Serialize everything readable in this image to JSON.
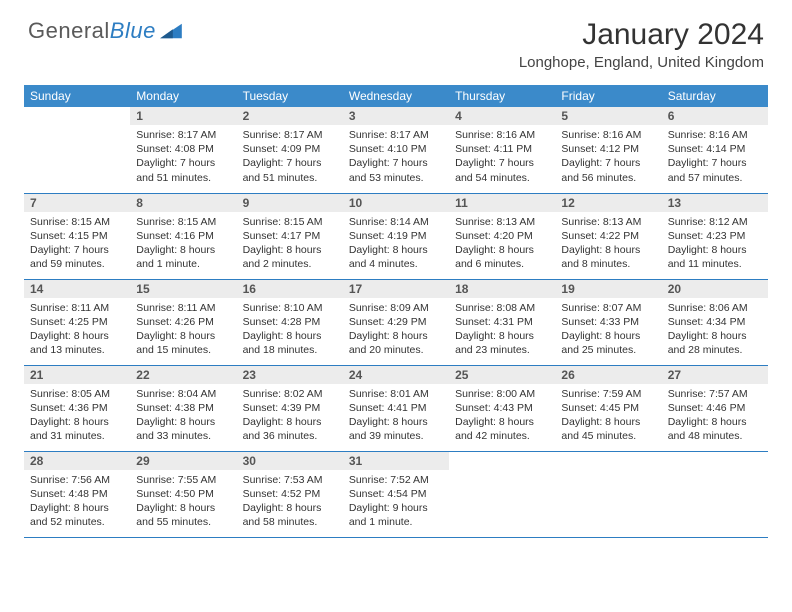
{
  "logo": {
    "text_main": "General",
    "text_accent": "Blue"
  },
  "title": "January 2024",
  "location": "Longhope, England, United Kingdom",
  "colors": {
    "header_bg": "#3b8aca",
    "header_text": "#ffffff",
    "daynum_bg": "#ececec",
    "daynum_text": "#555555",
    "border": "#2d7dc2",
    "body_text": "#333333",
    "title_text": "#333333",
    "logo_gray": "#5a5a5a",
    "logo_blue": "#2d7dc2"
  },
  "weekdays": [
    "Sunday",
    "Monday",
    "Tuesday",
    "Wednesday",
    "Thursday",
    "Friday",
    "Saturday"
  ],
  "weeks": [
    [
      null,
      {
        "n": "1",
        "sunrise": "8:17 AM",
        "sunset": "4:08 PM",
        "daylight": "7 hours and 51 minutes."
      },
      {
        "n": "2",
        "sunrise": "8:17 AM",
        "sunset": "4:09 PM",
        "daylight": "7 hours and 51 minutes."
      },
      {
        "n": "3",
        "sunrise": "8:17 AM",
        "sunset": "4:10 PM",
        "daylight": "7 hours and 53 minutes."
      },
      {
        "n": "4",
        "sunrise": "8:16 AM",
        "sunset": "4:11 PM",
        "daylight": "7 hours and 54 minutes."
      },
      {
        "n": "5",
        "sunrise": "8:16 AM",
        "sunset": "4:12 PM",
        "daylight": "7 hours and 56 minutes."
      },
      {
        "n": "6",
        "sunrise": "8:16 AM",
        "sunset": "4:14 PM",
        "daylight": "7 hours and 57 minutes."
      }
    ],
    [
      {
        "n": "7",
        "sunrise": "8:15 AM",
        "sunset": "4:15 PM",
        "daylight": "7 hours and 59 minutes."
      },
      {
        "n": "8",
        "sunrise": "8:15 AM",
        "sunset": "4:16 PM",
        "daylight": "8 hours and 1 minute."
      },
      {
        "n": "9",
        "sunrise": "8:15 AM",
        "sunset": "4:17 PM",
        "daylight": "8 hours and 2 minutes."
      },
      {
        "n": "10",
        "sunrise": "8:14 AM",
        "sunset": "4:19 PM",
        "daylight": "8 hours and 4 minutes."
      },
      {
        "n": "11",
        "sunrise": "8:13 AM",
        "sunset": "4:20 PM",
        "daylight": "8 hours and 6 minutes."
      },
      {
        "n": "12",
        "sunrise": "8:13 AM",
        "sunset": "4:22 PM",
        "daylight": "8 hours and 8 minutes."
      },
      {
        "n": "13",
        "sunrise": "8:12 AM",
        "sunset": "4:23 PM",
        "daylight": "8 hours and 11 minutes."
      }
    ],
    [
      {
        "n": "14",
        "sunrise": "8:11 AM",
        "sunset": "4:25 PM",
        "daylight": "8 hours and 13 minutes."
      },
      {
        "n": "15",
        "sunrise": "8:11 AM",
        "sunset": "4:26 PM",
        "daylight": "8 hours and 15 minutes."
      },
      {
        "n": "16",
        "sunrise": "8:10 AM",
        "sunset": "4:28 PM",
        "daylight": "8 hours and 18 minutes."
      },
      {
        "n": "17",
        "sunrise": "8:09 AM",
        "sunset": "4:29 PM",
        "daylight": "8 hours and 20 minutes."
      },
      {
        "n": "18",
        "sunrise": "8:08 AM",
        "sunset": "4:31 PM",
        "daylight": "8 hours and 23 minutes."
      },
      {
        "n": "19",
        "sunrise": "8:07 AM",
        "sunset": "4:33 PM",
        "daylight": "8 hours and 25 minutes."
      },
      {
        "n": "20",
        "sunrise": "8:06 AM",
        "sunset": "4:34 PM",
        "daylight": "8 hours and 28 minutes."
      }
    ],
    [
      {
        "n": "21",
        "sunrise": "8:05 AM",
        "sunset": "4:36 PM",
        "daylight": "8 hours and 31 minutes."
      },
      {
        "n": "22",
        "sunrise": "8:04 AM",
        "sunset": "4:38 PM",
        "daylight": "8 hours and 33 minutes."
      },
      {
        "n": "23",
        "sunrise": "8:02 AM",
        "sunset": "4:39 PM",
        "daylight": "8 hours and 36 minutes."
      },
      {
        "n": "24",
        "sunrise": "8:01 AM",
        "sunset": "4:41 PM",
        "daylight": "8 hours and 39 minutes."
      },
      {
        "n": "25",
        "sunrise": "8:00 AM",
        "sunset": "4:43 PM",
        "daylight": "8 hours and 42 minutes."
      },
      {
        "n": "26",
        "sunrise": "7:59 AM",
        "sunset": "4:45 PM",
        "daylight": "8 hours and 45 minutes."
      },
      {
        "n": "27",
        "sunrise": "7:57 AM",
        "sunset": "4:46 PM",
        "daylight": "8 hours and 48 minutes."
      }
    ],
    [
      {
        "n": "28",
        "sunrise": "7:56 AM",
        "sunset": "4:48 PM",
        "daylight": "8 hours and 52 minutes."
      },
      {
        "n": "29",
        "sunrise": "7:55 AM",
        "sunset": "4:50 PM",
        "daylight": "8 hours and 55 minutes."
      },
      {
        "n": "30",
        "sunrise": "7:53 AM",
        "sunset": "4:52 PM",
        "daylight": "8 hours and 58 minutes."
      },
      {
        "n": "31",
        "sunrise": "7:52 AM",
        "sunset": "4:54 PM",
        "daylight": "9 hours and 1 minute."
      },
      null,
      null,
      null
    ]
  ],
  "labels": {
    "sunrise": "Sunrise:",
    "sunset": "Sunset:",
    "daylight": "Daylight:"
  }
}
